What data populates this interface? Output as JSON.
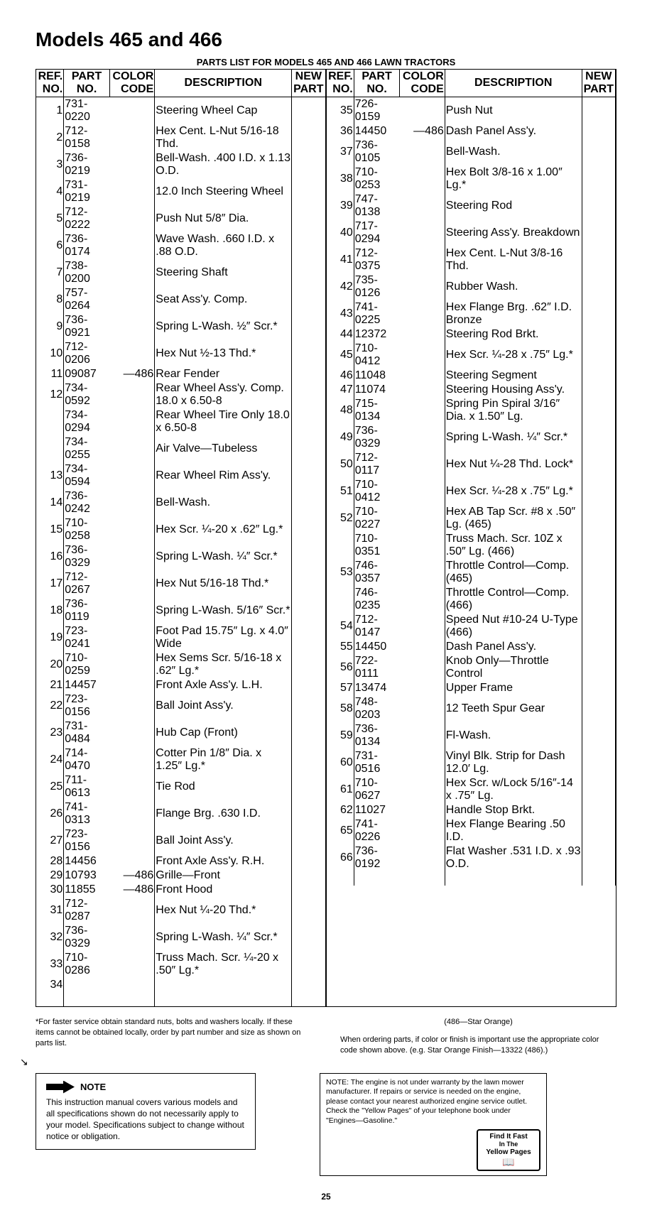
{
  "title": "Models 465 and 466",
  "subtitle": "PARTS LIST FOR MODELS 465 AND 466 LAWN TRACTORS",
  "headers": {
    "ref": "REF.\nNO.",
    "part": "PART\nNO.",
    "color": "COLOR\nCODE",
    "desc": "DESCRIPTION",
    "new": "NEW\nPART"
  },
  "left_rows": [
    {
      "ref": "1",
      "part": "731-0220",
      "color": "",
      "desc": "Steering Wheel Cap"
    },
    {
      "ref": "2",
      "part": "712-0158",
      "color": "",
      "desc": "Hex Cent. L-Nut 5/16-18 Thd."
    },
    {
      "ref": "3",
      "part": "736-0219",
      "color": "",
      "desc": "Bell-Wash. .400 I.D. x 1.13 O.D."
    },
    {
      "ref": "4",
      "part": "731-0219",
      "color": "",
      "desc": "12.0 Inch Steering Wheel"
    },
    {
      "ref": "5",
      "part": "712-0222",
      "color": "",
      "desc": "Push Nut 5/8″ Dia."
    },
    {
      "ref": "6",
      "part": "736-0174",
      "color": "",
      "desc": "Wave Wash. .660 I.D. x .88 O.D."
    },
    {
      "ref": "7",
      "part": "738-0200",
      "color": "",
      "desc": "Steering Shaft"
    },
    {
      "ref": "8",
      "part": "757-0264",
      "color": "",
      "desc": "Seat Ass'y. Comp."
    },
    {
      "ref": "9",
      "part": "736-0921",
      "color": "",
      "desc": "Spring L-Wash. ½″ Scr.*"
    },
    {
      "ref": "10",
      "part": "712-0206",
      "color": "",
      "desc": "Hex Nut ½-13 Thd.*"
    },
    {
      "ref": "11",
      "part": "09087",
      "color": "—486",
      "desc": "Rear Fender"
    },
    {
      "ref": "12",
      "part": "734-0592",
      "color": "",
      "desc": "Rear Wheel Ass'y. Comp. 18.0 x 6.50-8"
    },
    {
      "ref": "",
      "part": "734-0294",
      "color": "",
      "desc": "Rear Wheel Tire Only 18.0 x 6.50-8"
    },
    {
      "ref": "",
      "part": "734-0255",
      "color": "",
      "desc": "Air Valve—Tubeless"
    },
    {
      "ref": "13",
      "part": "734-0594",
      "color": "",
      "desc": "Rear Wheel Rim Ass'y."
    },
    {
      "ref": "14",
      "part": "736-0242",
      "color": "",
      "desc": "Bell-Wash."
    },
    {
      "ref": "15",
      "part": "710-0258",
      "color": "",
      "desc": "Hex Scr. ¼-20 x .62″ Lg.*"
    },
    {
      "ref": "16",
      "part": "736-0329",
      "color": "",
      "desc": "Spring L-Wash. ¼″ Scr.*"
    },
    {
      "ref": "17",
      "part": "712-0267",
      "color": "",
      "desc": "Hex Nut 5/16-18 Thd.*"
    },
    {
      "ref": "18",
      "part": "736-0119",
      "color": "",
      "desc": "Spring L-Wash. 5/16″ Scr.*"
    },
    {
      "ref": "19",
      "part": "723-0241",
      "color": "",
      "desc": "Foot Pad 15.75″ Lg. x 4.0″ Wide"
    },
    {
      "ref": "20",
      "part": "710-0259",
      "color": "",
      "desc": "Hex Sems Scr. 5/16-18 x .62″ Lg.*"
    },
    {
      "ref": "21",
      "part": "14457",
      "color": "",
      "desc": "Front Axle Ass'y. L.H."
    },
    {
      "ref": "22",
      "part": "723-0156",
      "color": "",
      "desc": "Ball Joint Ass'y."
    },
    {
      "ref": "23",
      "part": "731-0484",
      "color": "",
      "desc": "Hub Cap (Front)"
    },
    {
      "ref": "24",
      "part": "714-0470",
      "color": "",
      "desc": "Cotter Pin 1/8″ Dia. x 1.25″ Lg.*"
    },
    {
      "ref": "25",
      "part": "711-0613",
      "color": "",
      "desc": "Tie Rod"
    },
    {
      "ref": "26",
      "part": "741-0313",
      "color": "",
      "desc": "Flange Brg. .630 I.D."
    },
    {
      "ref": "27",
      "part": "723-0156",
      "color": "",
      "desc": "Ball Joint Ass'y."
    },
    {
      "ref": "28",
      "part": "14456",
      "color": "",
      "desc": "Front Axle Ass'y. R.H."
    },
    {
      "ref": "29",
      "part": "10793",
      "color": "—486",
      "desc": "Grille—Front"
    },
    {
      "ref": "30",
      "part": "11855",
      "color": "—486",
      "desc": "Front Hood"
    },
    {
      "ref": "31",
      "part": "712-0287",
      "color": "",
      "desc": "Hex Nut ¼-20 Thd.*"
    },
    {
      "ref": "32",
      "part": "736-0329",
      "color": "",
      "desc": "Spring L-Wash. ¼″ Scr.*"
    },
    {
      "ref": "33",
      "part": "710-0286",
      "color": "",
      "desc": "Truss Mach. Scr. ¼-20 x .50″ Lg.*"
    },
    {
      "ref": "34",
      "part": "",
      "color": "",
      "desc": ""
    }
  ],
  "right_rows": [
    {
      "ref": "35",
      "part": "726-0159",
      "color": "",
      "desc": "Push Nut"
    },
    {
      "ref": "36",
      "part": "14450",
      "color": "—486",
      "desc": "Dash Panel Ass'y."
    },
    {
      "ref": "37",
      "part": "736-0105",
      "color": "",
      "desc": "Bell-Wash."
    },
    {
      "ref": "38",
      "part": "710-0253",
      "color": "",
      "desc": "Hex Bolt 3/8-16 x 1.00″ Lg.*"
    },
    {
      "ref": "39",
      "part": "747-0138",
      "color": "",
      "desc": "Steering Rod"
    },
    {
      "ref": "40",
      "part": "717-0294",
      "color": "",
      "desc": "Steering Ass'y. Breakdown"
    },
    {
      "ref": "41",
      "part": "712-0375",
      "color": "",
      "desc": "Hex Cent. L-Nut 3/8-16 Thd."
    },
    {
      "ref": "42",
      "part": "735-0126",
      "color": "",
      "desc": "Rubber Wash."
    },
    {
      "ref": "43",
      "part": "741-0225",
      "color": "",
      "desc": "Hex Flange Brg. .62″ I.D. Bronze"
    },
    {
      "ref": "44",
      "part": "12372",
      "color": "",
      "desc": "Steering Rod Brkt."
    },
    {
      "ref": "45",
      "part": "710-0412",
      "color": "",
      "desc": "Hex Scr. ¼-28 x .75″ Lg.*"
    },
    {
      "ref": "46",
      "part": "11048",
      "color": "",
      "desc": "Steering Segment"
    },
    {
      "ref": "47",
      "part": "11074",
      "color": "",
      "desc": "Steering Housing Ass'y."
    },
    {
      "ref": "48",
      "part": "715-0134",
      "color": "",
      "desc": "Spring Pin Spiral 3/16″ Dia. x 1.50″ Lg."
    },
    {
      "ref": "49",
      "part": "736-0329",
      "color": "",
      "desc": "Spring L-Wash. ¼″ Scr.*"
    },
    {
      "ref": "50",
      "part": "712-0117",
      "color": "",
      "desc": "Hex Nut ¼-28 Thd. Lock*"
    },
    {
      "ref": "51",
      "part": "710-0412",
      "color": "",
      "desc": "Hex Scr. ¼-28 x .75″ Lg.*"
    },
    {
      "ref": "52",
      "part": "710-0227",
      "color": "",
      "desc": "Hex AB Tap Scr. #8 x .50″ Lg. (465)"
    },
    {
      "ref": "",
      "part": "710-0351",
      "color": "",
      "desc": "Truss Mach. Scr. 10Z x .50″ Lg. (466)"
    },
    {
      "ref": "53",
      "part": "746-0357",
      "color": "",
      "desc": "Throttle Control—Comp. (465)"
    },
    {
      "ref": "",
      "part": "746-0235",
      "color": "",
      "desc": "Throttle Control—Comp. (466)"
    },
    {
      "ref": "54",
      "part": "712-0147",
      "color": "",
      "desc": "Speed Nut #10-24 U-Type (466)"
    },
    {
      "ref": "55",
      "part": "14450",
      "color": "",
      "desc": "Dash Panel Ass'y."
    },
    {
      "ref": "56",
      "part": "722-0111",
      "color": "",
      "desc": "Knob Only—Throttle Control"
    },
    {
      "ref": "57",
      "part": "13474",
      "color": "",
      "desc": "Upper Frame"
    },
    {
      "ref": "58",
      "part": "748-0203",
      "color": "",
      "desc": "12 Teeth Spur Gear"
    },
    {
      "ref": "59",
      "part": "736-0134",
      "color": "",
      "desc": "Fl-Wash."
    },
    {
      "ref": "60",
      "part": "731-0516",
      "color": "",
      "desc": "Vinyl Blk. Strip for Dash 12.0′ Lg."
    },
    {
      "ref": "61",
      "part": "710-0627",
      "color": "",
      "desc": "Hex Scr. w/Lock 5/16″-14 x .75″ Lg."
    },
    {
      "ref": "62",
      "part": "11027",
      "color": "",
      "desc": "Handle Stop Brkt."
    },
    {
      "ref": "65",
      "part": "741-0226",
      "color": "",
      "desc": "Hex Flange Bearing .50 I.D."
    },
    {
      "ref": "66",
      "part": "736-0192",
      "color": "",
      "desc": "Flat Washer .531 I.D. x .93 O.D."
    }
  ],
  "footnote_left": "*For faster service obtain standard nuts, bolts and washers locally. If these items cannot be obtained locally, order by part number and size as shown on parts list.",
  "color_note": "(486—Star Orange)",
  "footnote_right": "When ordering parts, if color or finish is important use the appropriate color code shown above. (e.g. Star Orange Finish—13322 (486).)",
  "note_label": "NOTE",
  "note_text": "This instruction manual covers various models and all specifications shown do not necessarily apply to your model. Specifications subject to change without notice or obligation.",
  "engine_note": "NOTE: The engine is not under warranty by the lawn mower manufacturer. If repairs or service is needed on the engine, please contact your nearest authorized engine service outlet. Check the \"Yellow Pages\" of your telephone book under \"Engines—Gasoline.\"",
  "yp_line1": "Find It Fast",
  "yp_line2": "In The",
  "yp_line3": "Yellow Pages",
  "page_number": "25"
}
